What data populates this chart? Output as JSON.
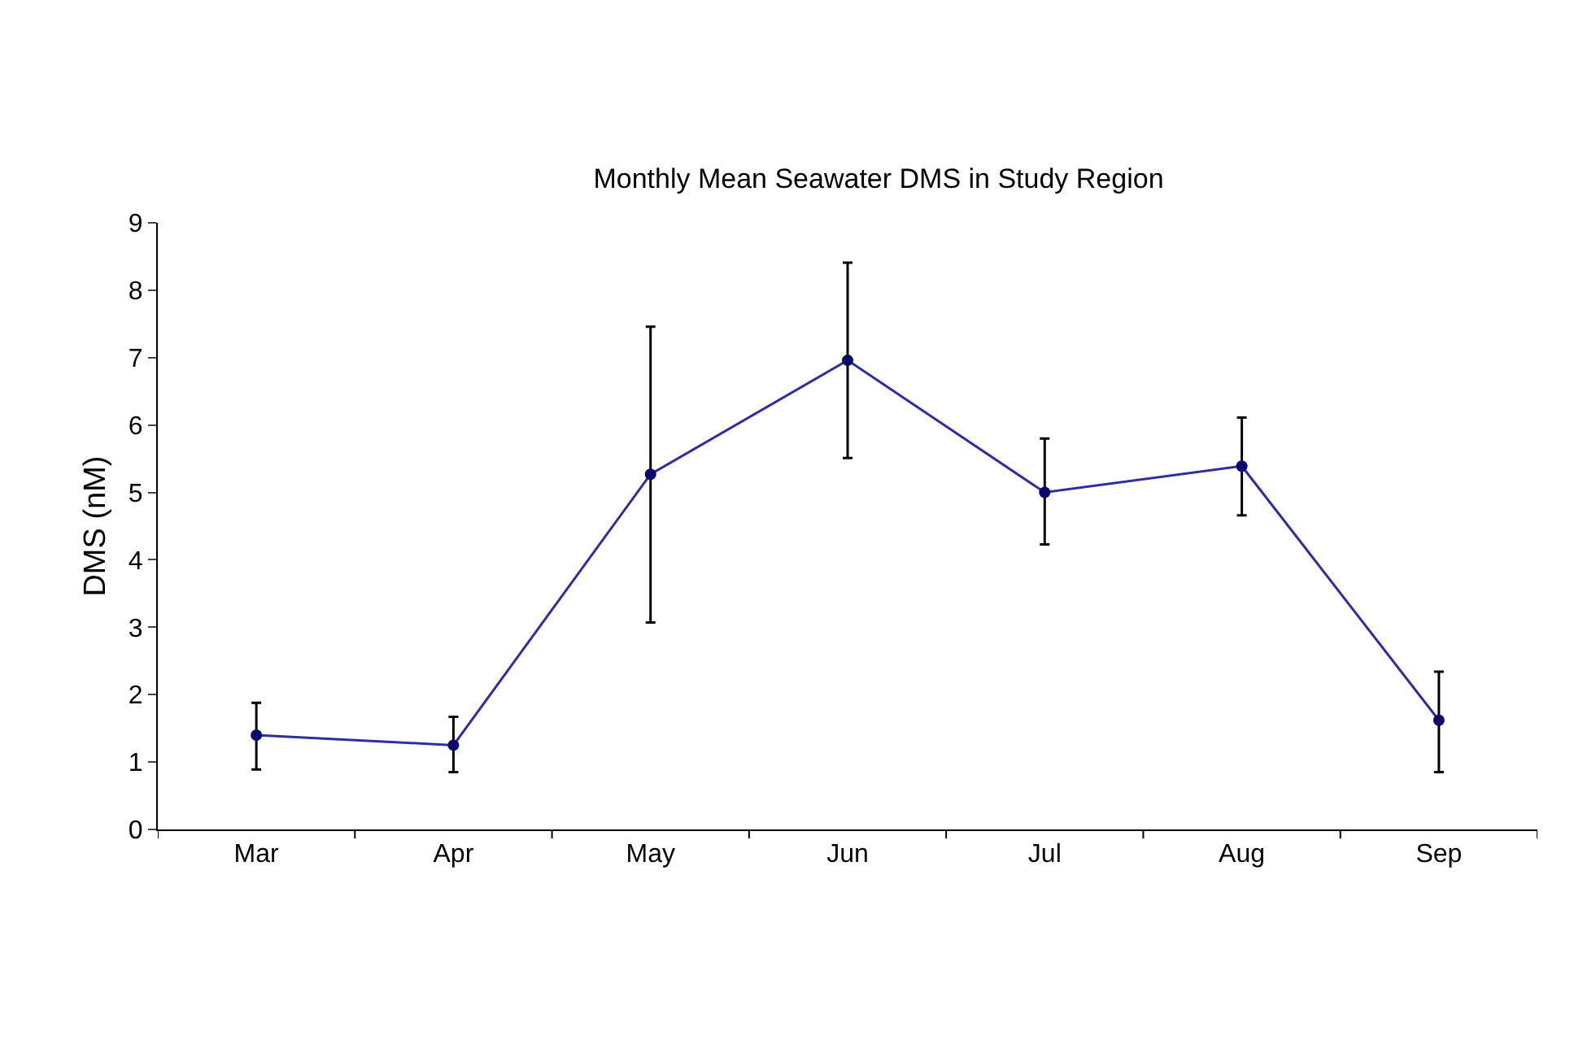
{
  "chart_data": {
    "type": "line",
    "title": "Monthly Mean Seawater DMS in Study Region",
    "ylabel": "DMS (nM)",
    "categories": [
      "Mar",
      "Apr",
      "May",
      "Jun",
      "Jul",
      "Aug",
      "Sep"
    ],
    "series": [
      {
        "color": "#2e2e9e",
        "values": [
          1.4,
          1.25,
          5.27,
          6.96,
          5.0,
          5.39,
          1.62
        ],
        "errors": [
          [
            0.89,
            1.88
          ],
          [
            0.85,
            1.67
          ],
          [
            3.07,
            7.46
          ],
          [
            5.51,
            8.41
          ],
          [
            4.23,
            5.8
          ],
          [
            4.66,
            6.11
          ],
          [
            0.85,
            2.34
          ]
        ]
      }
    ],
    "ylim": [
      0,
      9
    ],
    "yticks": [
      0,
      1,
      2,
      3,
      4,
      5,
      6,
      7,
      8,
      9
    ],
    "marker": "circle",
    "line_style": "solid"
  }
}
